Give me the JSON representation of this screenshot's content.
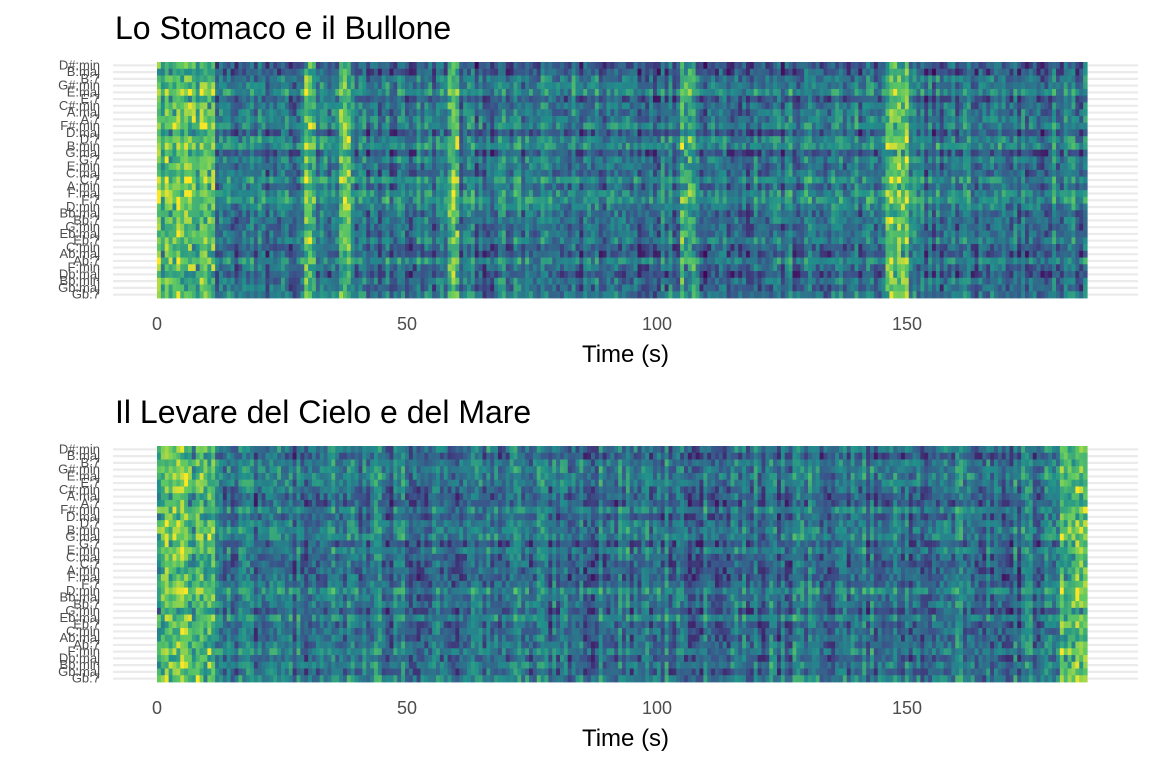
{
  "chart_data": [
    {
      "type": "heatmap",
      "title": "Lo Stomaco e il Bullone",
      "xlabel": "Time (s)",
      "ylabel": "",
      "xlim": [
        0,
        180
      ],
      "x_ticks": [
        0,
        50,
        100,
        150
      ],
      "duration": 186,
      "y_categories": [
        "D#:min",
        "B:maj",
        "B:7",
        "G#:min",
        "E:maj",
        "E:7",
        "C#:min",
        "A:maj",
        "A:7",
        "F#:min",
        "D:maj",
        "D:7",
        "B:min",
        "G:maj",
        "G:7",
        "E:min",
        "C:maj",
        "C:7",
        "A:min",
        "F:maj",
        "F:7",
        "D:min",
        "Bb:maj",
        "Bb:7",
        "G:min",
        "Eb:maj",
        "Eb:7",
        "C:min",
        "Ab:maj",
        "Ab:7",
        "F:min",
        "Db:maj",
        "Bb:min",
        "Gb:maj",
        "Gb:7"
      ],
      "bright_segments": [
        [
          0,
          11
        ],
        [
          29,
          31
        ],
        [
          36,
          38
        ],
        [
          58,
          60
        ],
        [
          104,
          107
        ],
        [
          145,
          150
        ]
      ],
      "color_scale": [
        "#440154",
        "#3b528b",
        "#21918c",
        "#5ec962",
        "#fde725"
      ],
      "grid": true,
      "legend": "none"
    },
    {
      "type": "heatmap",
      "title": "Il Levare del Cielo e del Mare",
      "xlabel": "Time (s)",
      "ylabel": "",
      "xlim": [
        0,
        186
      ],
      "x_ticks": [
        0,
        50,
        100,
        150
      ],
      "duration": 186,
      "y_categories": [
        "D#:min",
        "B:maj",
        "B:7",
        "G#:min",
        "E:maj",
        "E:7",
        "C#:min",
        "A:maj",
        "A:7",
        "F#:min",
        "D:maj",
        "D:7",
        "B:min",
        "G:maj",
        "G:7",
        "E:min",
        "C:maj",
        "C:7",
        "A:min",
        "F:maj",
        "F:7",
        "D:min",
        "Bb:maj",
        "Bb:7",
        "G:min",
        "Eb:maj",
        "Eb:7",
        "C:min",
        "Ab:maj",
        "Ab:7",
        "F:min",
        "Db:maj",
        "Bb:min",
        "Gb:maj",
        "Gb:7"
      ],
      "bright_segments": [
        [
          0,
          11
        ],
        [
          180,
          186
        ]
      ],
      "color_scale": [
        "#440154",
        "#3b528b",
        "#21918c",
        "#5ec962",
        "#fde725"
      ],
      "grid": true,
      "legend": "none"
    }
  ]
}
